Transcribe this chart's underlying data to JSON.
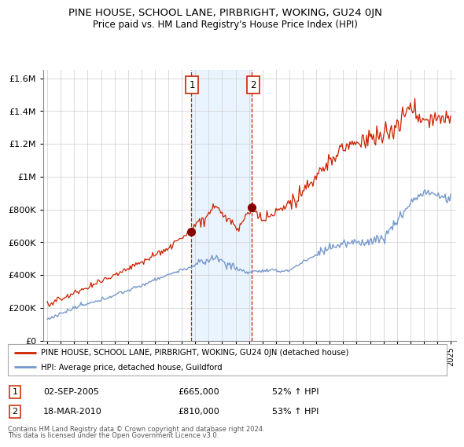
{
  "title": "PINE HOUSE, SCHOOL LANE, PIRBRIGHT, WOKING, GU24 0JN",
  "subtitle": "Price paid vs. HM Land Registry's House Price Index (HPI)",
  "legend_line1": "PINE HOUSE, SCHOOL LANE, PIRBRIGHT, WOKING, GU24 0JN (detached house)",
  "legend_line2": "HPI: Average price, detached house, Guildford",
  "footnote1": "Contains HM Land Registry data © Crown copyright and database right 2024.",
  "footnote2": "This data is licensed under the Open Government Licence v3.0.",
  "transaction1_date": "02-SEP-2005",
  "transaction1_price": "£665,000",
  "transaction1_hpi": "52% ↑ HPI",
  "transaction2_date": "18-MAR-2010",
  "transaction2_price": "£810,000",
  "transaction2_hpi": "53% ↑ HPI",
  "hpi_color": "#7799cc",
  "price_color": "#cc2200",
  "marker_color": "#880000",
  "vline_color": "#cc2200",
  "shade_color": "#ddeeff",
  "ylim_min": 0,
  "ylim_max": 1650000,
  "xmin": 1994.7,
  "xmax": 2025.4,
  "background_color": "#ffffff",
  "grid_color": "#cccccc"
}
